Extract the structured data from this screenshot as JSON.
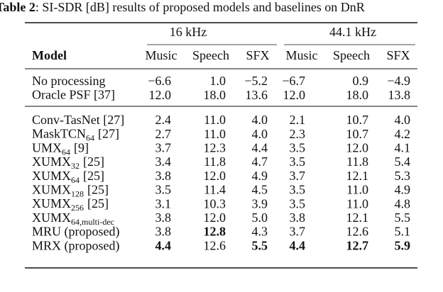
{
  "caption": {
    "label": "Table 2",
    "text": ": SI-SDR [dB] results of proposed models and baselines on DnR"
  },
  "table": {
    "groups": [
      "16 kHz",
      "44.1 kHz"
    ],
    "header": [
      "Model",
      "Music",
      "Speech",
      "SFX",
      "Music",
      "Speech",
      "SFX"
    ],
    "sections": [
      {
        "rows": [
          {
            "model": {
              "text": "No processing"
            },
            "cells": [
              "−6.6",
              "1.0",
              "−5.2",
              "−6.7",
              "0.9",
              "−4.9"
            ]
          },
          {
            "model": {
              "text": "Oracle PSF [37]"
            },
            "cells": [
              "12.0",
              "18.0",
              "13.6",
              "12.0",
              "18.0",
              "13.8"
            ]
          }
        ]
      },
      {
        "rows": [
          {
            "model": {
              "text": "Conv-TasNet [27]"
            },
            "cells": [
              "2.4",
              "11.0",
              "4.0",
              "2.1",
              "10.7",
              "4.0"
            ]
          },
          {
            "model": {
              "text": "MaskTCN",
              "sub": "64",
              "suffix": "[27]"
            },
            "cells": [
              "2.7",
              "11.0",
              "4.0",
              "2.3",
              "10.7",
              "4.2"
            ]
          },
          {
            "model": {
              "text": "UMX",
              "sub": "64",
              "suffix": "[9]"
            },
            "cells": [
              "3.7",
              "12.3",
              "4.4",
              "3.5",
              "12.0",
              "4.1"
            ]
          },
          {
            "model": {
              "text": "XUMX",
              "sub": "32",
              "suffix": "[25]"
            },
            "cells": [
              "3.4",
              "11.8",
              "4.7",
              "3.5",
              "11.8",
              "5.4"
            ]
          },
          {
            "model": {
              "text": "XUMX",
              "sub": "64",
              "suffix": "[25]"
            },
            "cells": [
              "3.8",
              "12.0",
              "4.9",
              "3.7",
              "12.1",
              "5.3"
            ]
          },
          {
            "model": {
              "text": "XUMX",
              "sub": "128",
              "suffix": "[25]"
            },
            "cells": [
              "3.5",
              "11.4",
              "4.5",
              "3.5",
              "11.0",
              "4.9"
            ]
          },
          {
            "model": {
              "text": "XUMX",
              "sub": "256",
              "suffix": "[25]"
            },
            "cells": [
              "3.1",
              "10.3",
              "3.9",
              "3.5",
              "11.0",
              "4.8"
            ]
          },
          {
            "model": {
              "text": "XUMX",
              "sub": "64,multi-dec"
            },
            "cells": [
              "3.8",
              "12.0",
              "5.0",
              "3.8",
              "12.1",
              "5.5"
            ]
          },
          {
            "model": {
              "text": "MRU (proposed)"
            },
            "cells": [
              "3.8",
              "12.8",
              "4.3",
              "3.7",
              "12.6",
              "5.1"
            ],
            "bold": [
              1
            ]
          },
          {
            "model": {
              "text": "MRX (proposed)"
            },
            "cells": [
              "4.4",
              "12.6",
              "5.5",
              "4.4",
              "12.7",
              "5.9"
            ],
            "bold": [
              0,
              2,
              3,
              4,
              5
            ]
          }
        ]
      }
    ]
  }
}
